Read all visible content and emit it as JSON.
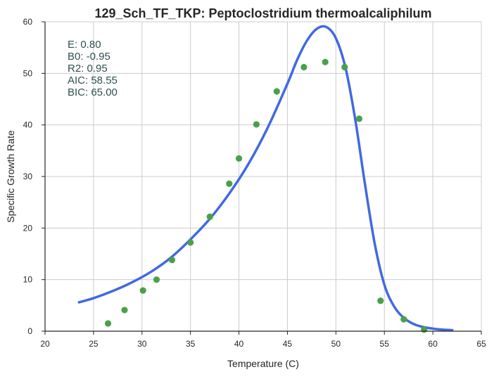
{
  "chart_data": {
    "type": "scatter",
    "title": "129_Sch_TF_TKP: Peptoclostridium thermoalcaliphilum",
    "xlabel": "Temperature (C)",
    "ylabel": "Specific Growth Rate",
    "xlim": [
      20,
      65
    ],
    "ylim": [
      0,
      60
    ],
    "x_ticks": [
      "20",
      "25",
      "30",
      "35",
      "40",
      "45",
      "50",
      "55",
      "60",
      "65"
    ],
    "y_ticks": [
      "0",
      "10",
      "20",
      "30",
      "40",
      "50",
      "60"
    ],
    "grid": true,
    "annotations": [
      "E:  0.80",
      "B0:  -0.95",
      "R2:  0.95",
      "AIC: 58.55",
      "BIC: 65.00"
    ],
    "colors": {
      "points": "#4aa04a",
      "fit": "#4169e1",
      "annotation": "#2f4f4f"
    },
    "series": [
      {
        "kind": "points",
        "x": [
          26.5,
          28.2,
          30.1,
          31.5,
          33.1,
          35.0,
          37.0,
          39.0,
          40.0,
          41.8,
          43.9,
          46.7,
          48.9,
          50.9,
          52.4,
          54.6,
          57.0,
          59.1
        ],
        "y": [
          1.5,
          4.1,
          7.9,
          10.0,
          13.8,
          17.2,
          22.2,
          28.6,
          33.5,
          40.1,
          46.5,
          51.2,
          52.2,
          51.2,
          41.2,
          5.9,
          2.3,
          0.3
        ]
      },
      {
        "kind": "fit",
        "x": [
          23.5,
          25,
          27,
          29,
          31,
          33,
          35,
          37,
          39,
          41,
          43,
          45,
          46,
          47,
          48,
          49,
          50,
          51,
          52,
          53,
          54,
          55,
          56,
          57,
          58,
          59,
          60,
          61,
          62
        ],
        "y": [
          5.6,
          6.4,
          7.8,
          9.5,
          11.6,
          14.3,
          17.8,
          21.8,
          26.7,
          32.5,
          39.6,
          48.0,
          52.6,
          56.3,
          58.6,
          59.0,
          56.8,
          51.0,
          41.0,
          28.5,
          17.0,
          9.0,
          4.8,
          2.6,
          1.4,
          0.8,
          0.5,
          0.3,
          0.2
        ]
      }
    ]
  }
}
